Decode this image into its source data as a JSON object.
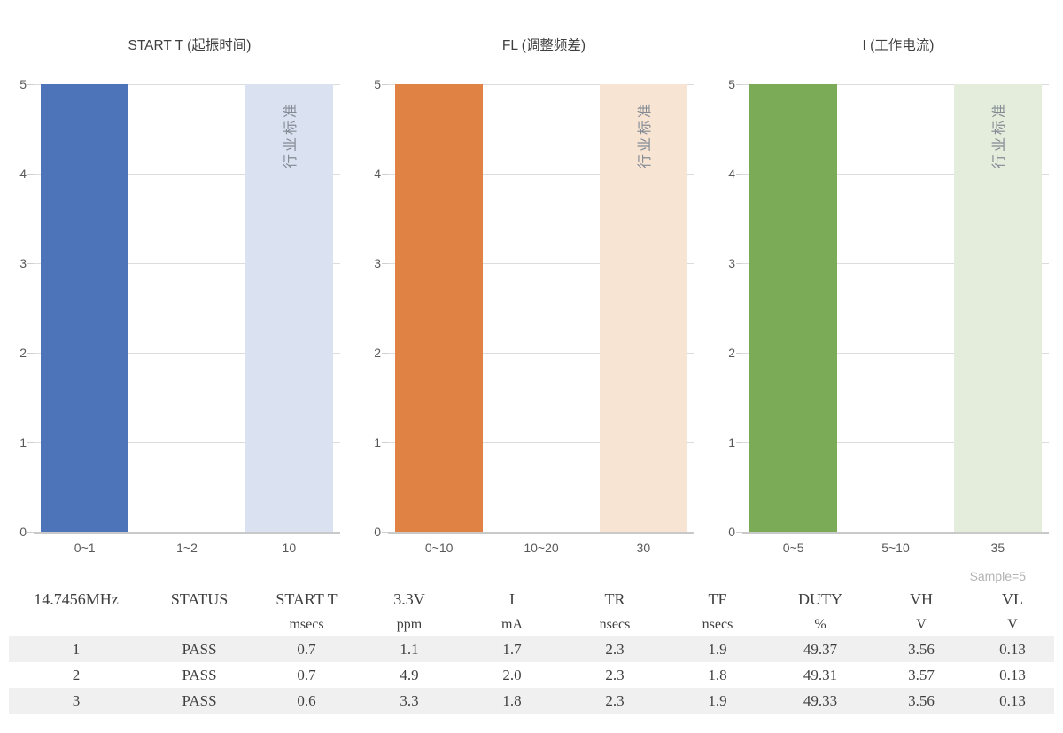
{
  "chart_data": [
    {
      "type": "bar",
      "title": "START T (起振时间)",
      "categories": [
        "0~1",
        "1~2",
        "10"
      ],
      "values": [
        5,
        0,
        5
      ],
      "colors": [
        "#4d73b8",
        null,
        "#dae1f0"
      ],
      "bar_annotations": [
        "",
        "",
        "行业标准"
      ],
      "xlabel": "",
      "ylabel": "",
      "ylim": [
        0,
        5
      ],
      "yticks": [
        0,
        1,
        2,
        3,
        4,
        5
      ],
      "grid": true,
      "legend": "none"
    },
    {
      "type": "bar",
      "title": "FL (调整频差)",
      "categories": [
        "0~10",
        "10~20",
        "30"
      ],
      "values": [
        5,
        0,
        5
      ],
      "colors": [
        "#e08243",
        null,
        "#f7e4d3"
      ],
      "bar_annotations": [
        "",
        "",
        "行业标准"
      ],
      "xlabel": "",
      "ylabel": "",
      "ylim": [
        0,
        5
      ],
      "yticks": [
        0,
        1,
        2,
        3,
        4,
        5
      ],
      "grid": true,
      "legend": "none"
    },
    {
      "type": "bar",
      "title": "I (工作电流)",
      "categories": [
        "0~5",
        "5~10",
        "35"
      ],
      "values": [
        5,
        0,
        5
      ],
      "colors": [
        "#7cab57",
        null,
        "#e4eddb"
      ],
      "bar_annotations": [
        "",
        "",
        "行业标准"
      ],
      "xlabel": "",
      "ylabel": "",
      "ylim": [
        0,
        5
      ],
      "yticks": [
        0,
        1,
        2,
        3,
        4,
        5
      ],
      "grid": true,
      "legend": "none"
    }
  ],
  "table": {
    "sample_note": "Sample=5",
    "columns": [
      {
        "name": "14.7456MHz",
        "unit": ""
      },
      {
        "name": "STATUS",
        "unit": ""
      },
      {
        "name": "START T",
        "unit": "msecs"
      },
      {
        "name": "3.3V",
        "unit": "ppm"
      },
      {
        "name": "I",
        "unit": "mA"
      },
      {
        "name": "TR",
        "unit": "nsecs"
      },
      {
        "name": "TF",
        "unit": "nsecs"
      },
      {
        "name": "DUTY",
        "unit": "%"
      },
      {
        "name": "VH",
        "unit": "V"
      },
      {
        "name": "VL",
        "unit": "V"
      }
    ],
    "rows": [
      [
        "1",
        "PASS",
        "0.7",
        "1.1",
        "1.7",
        "2.3",
        "1.9",
        "49.37",
        "3.56",
        "0.13"
      ],
      [
        "2",
        "PASS",
        "0.7",
        "4.9",
        "2.0",
        "2.3",
        "1.8",
        "49.31",
        "3.57",
        "0.13"
      ],
      [
        "3",
        "PASS",
        "0.6",
        "3.3",
        "1.8",
        "2.3",
        "1.9",
        "49.33",
        "3.56",
        "0.13"
      ]
    ]
  }
}
